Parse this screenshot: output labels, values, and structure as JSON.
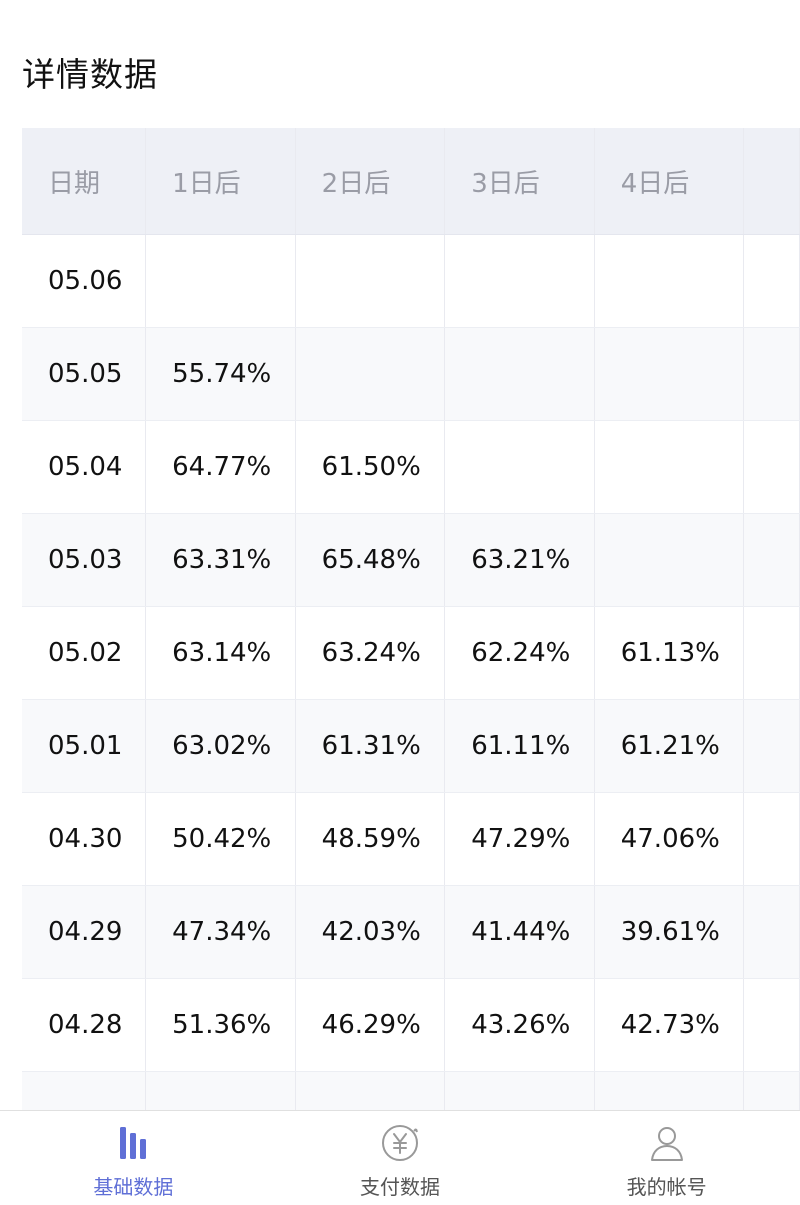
{
  "page": {
    "title": "详情数据"
  },
  "table": {
    "headers": [
      "日期",
      "1日后",
      "2日后",
      "3日后",
      "4日后",
      ""
    ],
    "rows": [
      [
        "05.06",
        "",
        "",
        "",
        "",
        ""
      ],
      [
        "05.05",
        "55.74%",
        "",
        "",
        "",
        ""
      ],
      [
        "05.04",
        "64.77%",
        "61.50%",
        "",
        "",
        ""
      ],
      [
        "05.03",
        "63.31%",
        "65.48%",
        "63.21%",
        "",
        ""
      ],
      [
        "05.02",
        "63.14%",
        "63.24%",
        "62.24%",
        "61.13%",
        ""
      ],
      [
        "05.01",
        "63.02%",
        "61.31%",
        "61.11%",
        "61.21%",
        ""
      ],
      [
        "04.30",
        "50.42%",
        "48.59%",
        "47.29%",
        "47.06%",
        ""
      ],
      [
        "04.29",
        "47.34%",
        "42.03%",
        "41.44%",
        "39.61%",
        ""
      ],
      [
        "04.28",
        "51.36%",
        "46.29%",
        "43.26%",
        "42.73%",
        ""
      ],
      [
        "",
        "",
        "",
        "",
        "",
        ""
      ]
    ]
  },
  "tabbar": {
    "items": [
      {
        "label": "基础数据",
        "icon": "bar-chart-icon",
        "active": true
      },
      {
        "label": "支付数据",
        "icon": "yuan-circle-icon",
        "active": false
      },
      {
        "label": "我的帐号",
        "icon": "user-icon",
        "active": false
      }
    ]
  },
  "colors": {
    "accent": "#5f6fd6",
    "header_bg": "#eef0f6",
    "header_text": "#9a9ca6",
    "inactive_icon": "#999999"
  }
}
